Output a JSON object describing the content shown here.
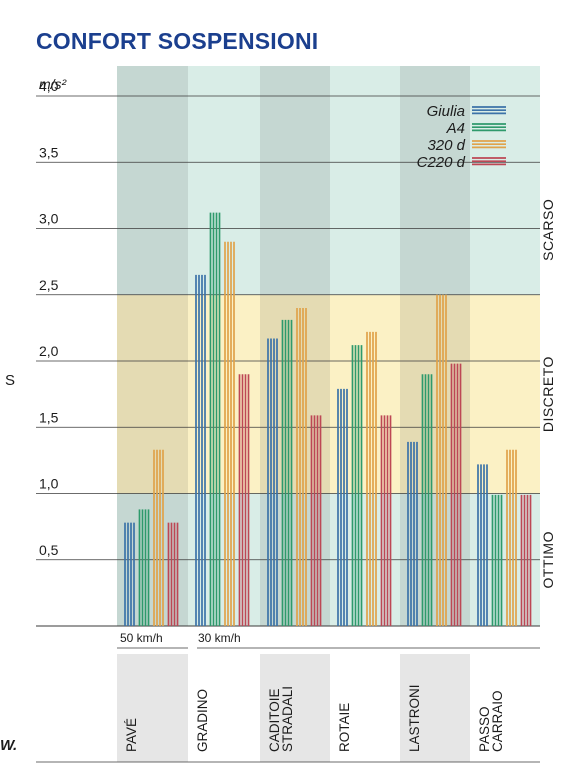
{
  "title": "CONFORT SOSPENSIONI",
  "edge_marks": [
    "S",
    "W."
  ],
  "colors": {
    "Giulia": "#3c73a8",
    "A4": "#2e9a6c",
    "320 d": "#e0a34a",
    "C220 d": "#bd4755",
    "zone_scarso": "#d9ede7",
    "zone_discreto": "#fbf1c5",
    "zone_ottimo": "#d9ede7",
    "column_shade": "rgba(0,0,0,0.09)"
  },
  "chart_data": {
    "type": "bar",
    "ylabel": "m/s²",
    "ylim": [
      0,
      4.0
    ],
    "yticks": [
      "4,0",
      "3,5",
      "3,0",
      "2,5",
      "2,0",
      "1,5",
      "1,0",
      "0,5"
    ],
    "ytick_values": [
      4.0,
      3.5,
      3.0,
      2.5,
      2.0,
      1.5,
      1.0,
      0.5
    ],
    "categories": [
      "PAVÉ",
      "GRADINO",
      "CADITOIE STRADALI",
      "ROTAIE",
      "LASTRONI",
      "PASSO CARRAIO"
    ],
    "speed_labels": [
      "50 km/h",
      "30 km/h"
    ],
    "series": [
      {
        "name": "Giulia",
        "values": [
          0.78,
          2.65,
          2.17,
          1.79,
          1.39,
          1.22
        ]
      },
      {
        "name": "A4",
        "values": [
          0.88,
          3.12,
          2.31,
          2.12,
          1.9,
          0.99
        ]
      },
      {
        "name": "320 d",
        "values": [
          1.33,
          2.9,
          2.4,
          2.22,
          2.5,
          1.33
        ]
      },
      {
        "name": "C220 d",
        "values": [
          0.78,
          1.9,
          1.59,
          1.59,
          1.98,
          0.99
        ]
      }
    ],
    "zones": [
      {
        "name": "SCARSO",
        "from": 2.5,
        "to": 4.0
      },
      {
        "name": "DISCRETO",
        "from": 1.0,
        "to": 2.5
      },
      {
        "name": "OTTIMO",
        "from": 0,
        "to": 1.0
      }
    ],
    "legend_position": "top-right",
    "grid": true
  }
}
